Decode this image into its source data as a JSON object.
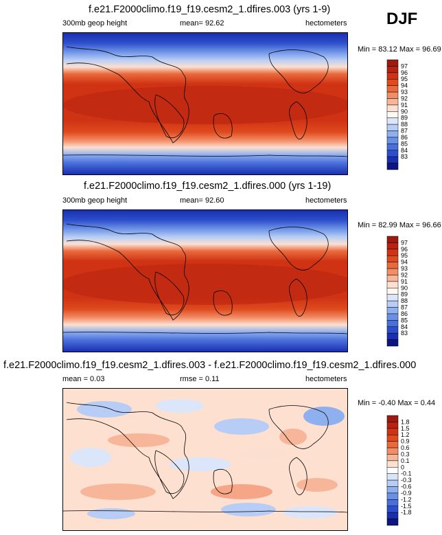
{
  "season": "DJF",
  "panels": [
    {
      "title": "f.e21.F2000climo.f19_f19.cesm2_1.dfires.003 (yrs 1-9)",
      "left_label": "300mb geop height",
      "center_label": "mean=  92.62",
      "right_label": "hectometers",
      "minmax": "Min = 83.12 Max =  96.69",
      "colorbar": {
        "labels": [
          "97",
          "96",
          "95",
          "94",
          "93",
          "92",
          "91",
          "90",
          "89",
          "88",
          "87",
          "86",
          "85",
          "84",
          "83"
        ],
        "colors": [
          "#9e1a0f",
          "#b8220f",
          "#cf3314",
          "#df4a1e",
          "#ea6a3c",
          "#f28d66",
          "#f7b699",
          "#fbe0d1",
          "#fff8f0",
          "#dbe6fa",
          "#b7cdf5",
          "#8fb0ef",
          "#6a90e6",
          "#4a6fdb",
          "#2d4ecc",
          "#1a2fb0",
          "#0d1580"
        ]
      }
    },
    {
      "title": "f.e21.F2000climo.f19_f19.cesm2_1.dfires.000 (yrs 1-19)",
      "left_label": "300mb geop height",
      "center_label": "mean=  92.60",
      "right_label": "hectometers",
      "minmax": "Min = 82.99 Max =  96.66",
      "colorbar": {
        "labels": [
          "97",
          "96",
          "95",
          "94",
          "93",
          "92",
          "91",
          "90",
          "89",
          "88",
          "87",
          "86",
          "85",
          "84",
          "83"
        ],
        "colors": [
          "#9e1a0f",
          "#b8220f",
          "#cf3314",
          "#df4a1e",
          "#ea6a3c",
          "#f28d66",
          "#f7b699",
          "#fbe0d1",
          "#fff8f0",
          "#dbe6fa",
          "#b7cdf5",
          "#8fb0ef",
          "#6a90e6",
          "#4a6fdb",
          "#2d4ecc",
          "#1a2fb0",
          "#0d1580"
        ]
      }
    },
    {
      "title": "f.e21.F2000climo.f19_f19.cesm2_1.dfires.003 - f.e21.F2000climo.f19_f19.cesm2_1.dfires.000",
      "left_label": "mean =  0.03",
      "center_label": "rmse =  0.11",
      "right_label": "hectometers",
      "minmax": "Min = -0.40 Max =  0.44",
      "colorbar": {
        "labels": [
          "1.8",
          "1.5",
          "1.2",
          "0.9",
          "0.6",
          "0.3",
          "0.1",
          "0",
          "-0.1",
          "-0.3",
          "-0.6",
          "-0.9",
          "-1.2",
          "-1.5",
          "-1.8"
        ],
        "colors": [
          "#9e1a0f",
          "#b8220f",
          "#cf3314",
          "#df4a1e",
          "#ea6a3c",
          "#f28d66",
          "#f7b699",
          "#fde0cf",
          "#ffffff",
          "#d9e4f8",
          "#b7cdf5",
          "#8fb0ef",
          "#6a90e6",
          "#4a6fdb",
          "#2d4ecc",
          "#1a2fb0",
          "#0d1580"
        ]
      }
    }
  ]
}
